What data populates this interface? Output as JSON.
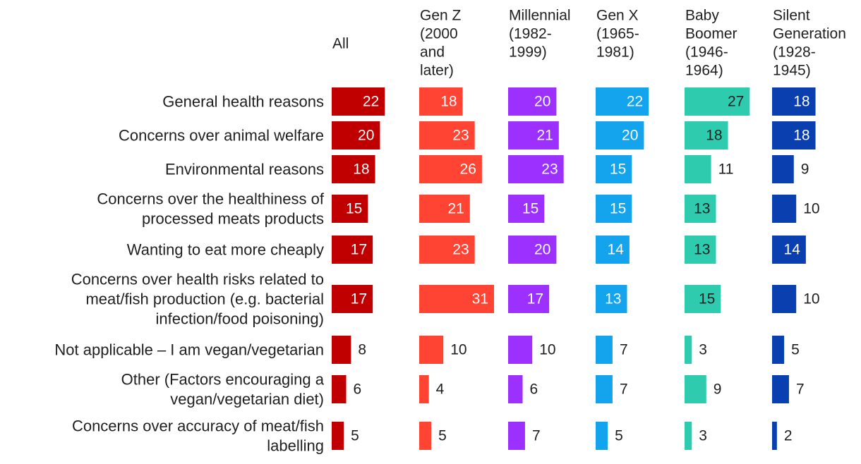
{
  "chart_data": {
    "type": "bar",
    "orientation": "horizontal",
    "layout": "small-multiples",
    "categories": [
      [
        "General health reasons"
      ],
      [
        "Concerns over animal welfare"
      ],
      [
        "Environmental reasons"
      ],
      [
        "Concerns over the healthiness of",
        "processed meats products"
      ],
      [
        "Wanting to eat more cheaply"
      ],
      [
        "Concerns over health risks related to",
        "meat/fish production (e.g. bacterial",
        "infection/food poisoning)"
      ],
      [
        "Not applicable – I am vegan/vegetarian"
      ],
      [
        "Other (Factors encouraging a",
        "vegan/vegetarian diet)"
      ],
      [
        "Concerns over accuracy of meat/fish",
        "labelling"
      ]
    ],
    "series": [
      {
        "name": [
          "All"
        ],
        "color": "#c00000",
        "label_inside": "#ffffff",
        "values": [
          22,
          20,
          18,
          15,
          17,
          17,
          8,
          6,
          5
        ]
      },
      {
        "name": [
          "Gen Z",
          "(2000",
          "and",
          "later)"
        ],
        "color": "#ff4433",
        "label_inside": "#ffffff",
        "values": [
          18,
          23,
          26,
          21,
          23,
          31,
          10,
          4,
          5
        ]
      },
      {
        "name": [
          "Millennial",
          "(1982-",
          "1999)"
        ],
        "color": "#9b30ff",
        "label_inside": "#ffffff",
        "values": [
          20,
          21,
          23,
          15,
          20,
          17,
          10,
          6,
          7
        ]
      },
      {
        "name": [
          "Gen X",
          "(1965-",
          "1981)"
        ],
        "color": "#14a4ee",
        "label_inside": "#ffffff",
        "values": [
          22,
          20,
          15,
          15,
          14,
          13,
          7,
          7,
          5
        ]
      },
      {
        "name": [
          "Baby",
          "Boomer",
          "(1946-",
          "1964)"
        ],
        "color": "#2ecbae",
        "label_inside": "#1f1f1f",
        "values": [
          27,
          18,
          11,
          13,
          13,
          15,
          3,
          9,
          3
        ]
      },
      {
        "name": [
          "Silent",
          "Generation",
          "(1928-",
          "1945)"
        ],
        "color": "#0a3fb0",
        "label_inside": "#ffffff",
        "values": [
          18,
          18,
          9,
          10,
          14,
          10,
          5,
          7,
          2
        ]
      }
    ],
    "title": "",
    "xlabel": "",
    "ylabel": "",
    "xlim": [
      0,
      31
    ],
    "grid": false,
    "legend": "none"
  }
}
